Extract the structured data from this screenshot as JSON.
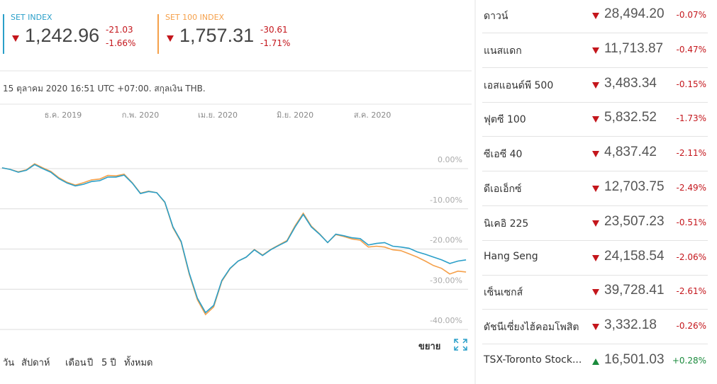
{
  "header": {
    "indices": [
      {
        "name": "SET INDEX",
        "color": "#2a9fc9",
        "value": "1,242.96",
        "change": "-21.03",
        "change_pct": "-1.66%"
      },
      {
        "name": "SET 100 INDEX",
        "color": "#f5a04a",
        "value": "1,757.31",
        "change": "-30.61",
        "change_pct": "-1.71%"
      }
    ],
    "timestamp": "15 ตุลาคม 2020 16:51 UTC +07:00. สกุลเงิน THB."
  },
  "chart_data": {
    "type": "line",
    "x": [
      0,
      2,
      4,
      6,
      8,
      10,
      12,
      14,
      16,
      18,
      20,
      22,
      24,
      26,
      28,
      30,
      32,
      34,
      36,
      38,
      40,
      42,
      44,
      46,
      48,
      50,
      52,
      54,
      56,
      58,
      60,
      62,
      64,
      66,
      68,
      70,
      72,
      74,
      76,
      78,
      80,
      82,
      84,
      86,
      88,
      90,
      92,
      94,
      96,
      98,
      100,
      102,
      104,
      106,
      108,
      110,
      112,
      114
    ],
    "xlim": [
      -0.5,
      114.5
    ],
    "xticks": [
      {
        "value": 15,
        "label": "ธ.ค. 2019"
      },
      {
        "value": 34,
        "label": "ก.พ. 2020"
      },
      {
        "value": 53,
        "label": "เม.ย. 2020"
      },
      {
        "value": 72,
        "label": "มิ.ย. 2020"
      },
      {
        "value": 91,
        "label": "ส.ค. 2020"
      }
    ],
    "ylim": [
      -41,
      6.5
    ],
    "yticks": [
      {
        "value": 0,
        "label": "0.00%"
      },
      {
        "value": -10,
        "label": "-10.00%"
      },
      {
        "value": -20,
        "label": "-20.00%"
      },
      {
        "value": -30,
        "label": "-30.00%"
      },
      {
        "value": -40,
        "label": "-40.00%"
      }
    ],
    "grid": true,
    "series": [
      {
        "name": "SET INDEX",
        "color": "#2a9fc9",
        "values": [
          0.2,
          -0.2,
          -0.9,
          -0.4,
          1.0,
          0,
          -0.9,
          -2.5,
          -3.6,
          -4.3,
          -3.9,
          -3.2,
          -3.0,
          -2.1,
          -2.1,
          -1.6,
          -3.6,
          -6.2,
          -5.7,
          -6.0,
          -8.3,
          -14.5,
          -18.1,
          -26.0,
          -32.2,
          -35.8,
          -34.0,
          -27.8,
          -24.8,
          -23.0,
          -22.0,
          -20.2,
          -21.6,
          -20.2,
          -19.1,
          -18.1,
          -14.5,
          -11.4,
          -14.5,
          -16.3,
          -18.4,
          -16.3,
          -16.7,
          -17.2,
          -17.4,
          -19.0,
          -18.6,
          -18.4,
          -19.3,
          -19.5,
          -19.8,
          -20.7,
          -21.3,
          -22.0,
          -22.7,
          -23.6,
          -23.0,
          -22.7
        ]
      },
      {
        "name": "SET 100 INDEX",
        "color": "#f5a04a",
        "values": [
          0.2,
          -0.2,
          -0.8,
          -0.3,
          1.2,
          0.2,
          -0.7,
          -2.3,
          -3.4,
          -4.1,
          -3.5,
          -2.8,
          -2.6,
          -1.7,
          -1.8,
          -1.4,
          -3.5,
          -6.1,
          -5.6,
          -6.0,
          -8.4,
          -14.7,
          -18.3,
          -26.3,
          -32.6,
          -36.3,
          -34.4,
          -28.0,
          -24.9,
          -23.0,
          -22.0,
          -20.1,
          -21.5,
          -20.1,
          -19.0,
          -17.9,
          -14.2,
          -11.1,
          -14.3,
          -16.2,
          -18.4,
          -16.4,
          -16.9,
          -17.5,
          -17.8,
          -19.5,
          -19.3,
          -19.5,
          -20.2,
          -20.4,
          -21.2,
          -22.0,
          -23.0,
          -24.1,
          -24.8,
          -26.2,
          -25.5,
          -25.7
        ]
      }
    ]
  },
  "controls": {
    "expand": "ขยาย",
    "timeframes": [
      "วัน",
      "สัปดาห์",
      "เดือน",
      "ปี",
      "5 ปี",
      "ทั้งหมด"
    ]
  },
  "tickers": [
    {
      "name": "ดาวน์",
      "value": "28,494.20",
      "change": "-0.07%"
    },
    {
      "name": "แนสแดก",
      "value": "11,713.87",
      "change": "-0.47%"
    },
    {
      "name": "เอสแอนด์พี 500",
      "value": "3,483.34",
      "change": "-0.15%"
    },
    {
      "name": "ฟุตซี 100",
      "value": "5,832.52",
      "change": "-1.73%"
    },
    {
      "name": "ซีเอซี 40",
      "value": "4,837.42",
      "change": "-2.11%"
    },
    {
      "name": "ดีเอเอ็กซ์",
      "value": "12,703.75",
      "change": "-2.49%"
    },
    {
      "name": "นิเคอิ 225",
      "value": "23,507.23",
      "change": "-0.51%"
    },
    {
      "name": "Hang Seng",
      "value": "24,158.54",
      "change": "-2.06%"
    },
    {
      "name": "เซ็นเซกส์",
      "value": "39,728.41",
      "change": "-2.61%"
    },
    {
      "name": "ดัชนีเซี่ยงไฮ้คอมโพสิต",
      "value": "3,332.18",
      "change": "-0.26%"
    },
    {
      "name": "TSX-Toronto Stock...",
      "value": "16,501.03",
      "change": "+0.28%"
    }
  ]
}
